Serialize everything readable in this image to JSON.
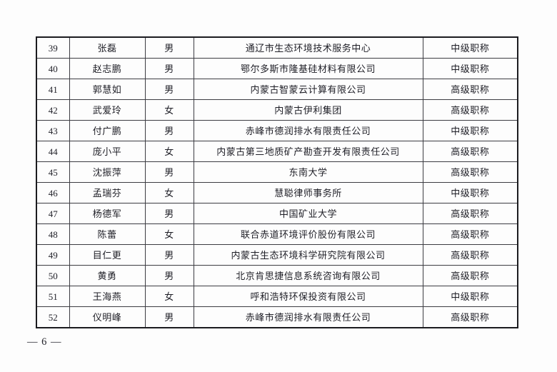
{
  "page": {
    "number_display": "— 6 —"
  },
  "table": {
    "rows": [
      {
        "no": "39",
        "name": "张磊",
        "gender": "男",
        "organization": "通辽市生态环境技术服务中心",
        "title": "中级职称"
      },
      {
        "no": "40",
        "name": "赵志鹏",
        "gender": "男",
        "organization": "鄂尔多斯市隆基硅材料有限公司",
        "title": "中级职称"
      },
      {
        "no": "41",
        "name": "郭慧如",
        "gender": "男",
        "organization": "内蒙古智蒙云计算有限公司",
        "title": "高级职称"
      },
      {
        "no": "42",
        "name": "武爱玲",
        "gender": "女",
        "organization": "内蒙古伊利集团",
        "title": "高级职称"
      },
      {
        "no": "43",
        "name": "付广鹏",
        "gender": "男",
        "organization": "赤峰市德润排水有限责任公司",
        "title": "中级职称"
      },
      {
        "no": "44",
        "name": "庞小平",
        "gender": "女",
        "organization": "内蒙古第三地质矿产勘查开发有限责任公司",
        "title": "高级职称"
      },
      {
        "no": "45",
        "name": "沈振萍",
        "gender": "男",
        "organization": "东南大学",
        "title": "高级职称"
      },
      {
        "no": "46",
        "name": "孟瑞芬",
        "gender": "女",
        "organization": "慧聪律师事务所",
        "title": "中级职称"
      },
      {
        "no": "47",
        "name": "杨德军",
        "gender": "男",
        "organization": "中国矿业大学",
        "title": "高级职称"
      },
      {
        "no": "48",
        "name": "陈蕾",
        "gender": "女",
        "organization": "联合赤道环境评价股份有限公司",
        "title": "高级职称"
      },
      {
        "no": "49",
        "name": "目仁更",
        "gender": "男",
        "organization": "内蒙古生态环境科学研究院有限公司",
        "title": "高级职称"
      },
      {
        "no": "50",
        "name": "黄勇",
        "gender": "男",
        "organization": "北京肯思捷信息系统咨询有限公司",
        "title": "高级职称"
      },
      {
        "no": "51",
        "name": "王海燕",
        "gender": "女",
        "organization": "呼和浩特环保投资有限公司",
        "title": "中级职称"
      },
      {
        "no": "52",
        "name": "仪明峰",
        "gender": "男",
        "organization": "赤峰市德润排水有限责任公司",
        "title": "高级职称"
      }
    ]
  }
}
